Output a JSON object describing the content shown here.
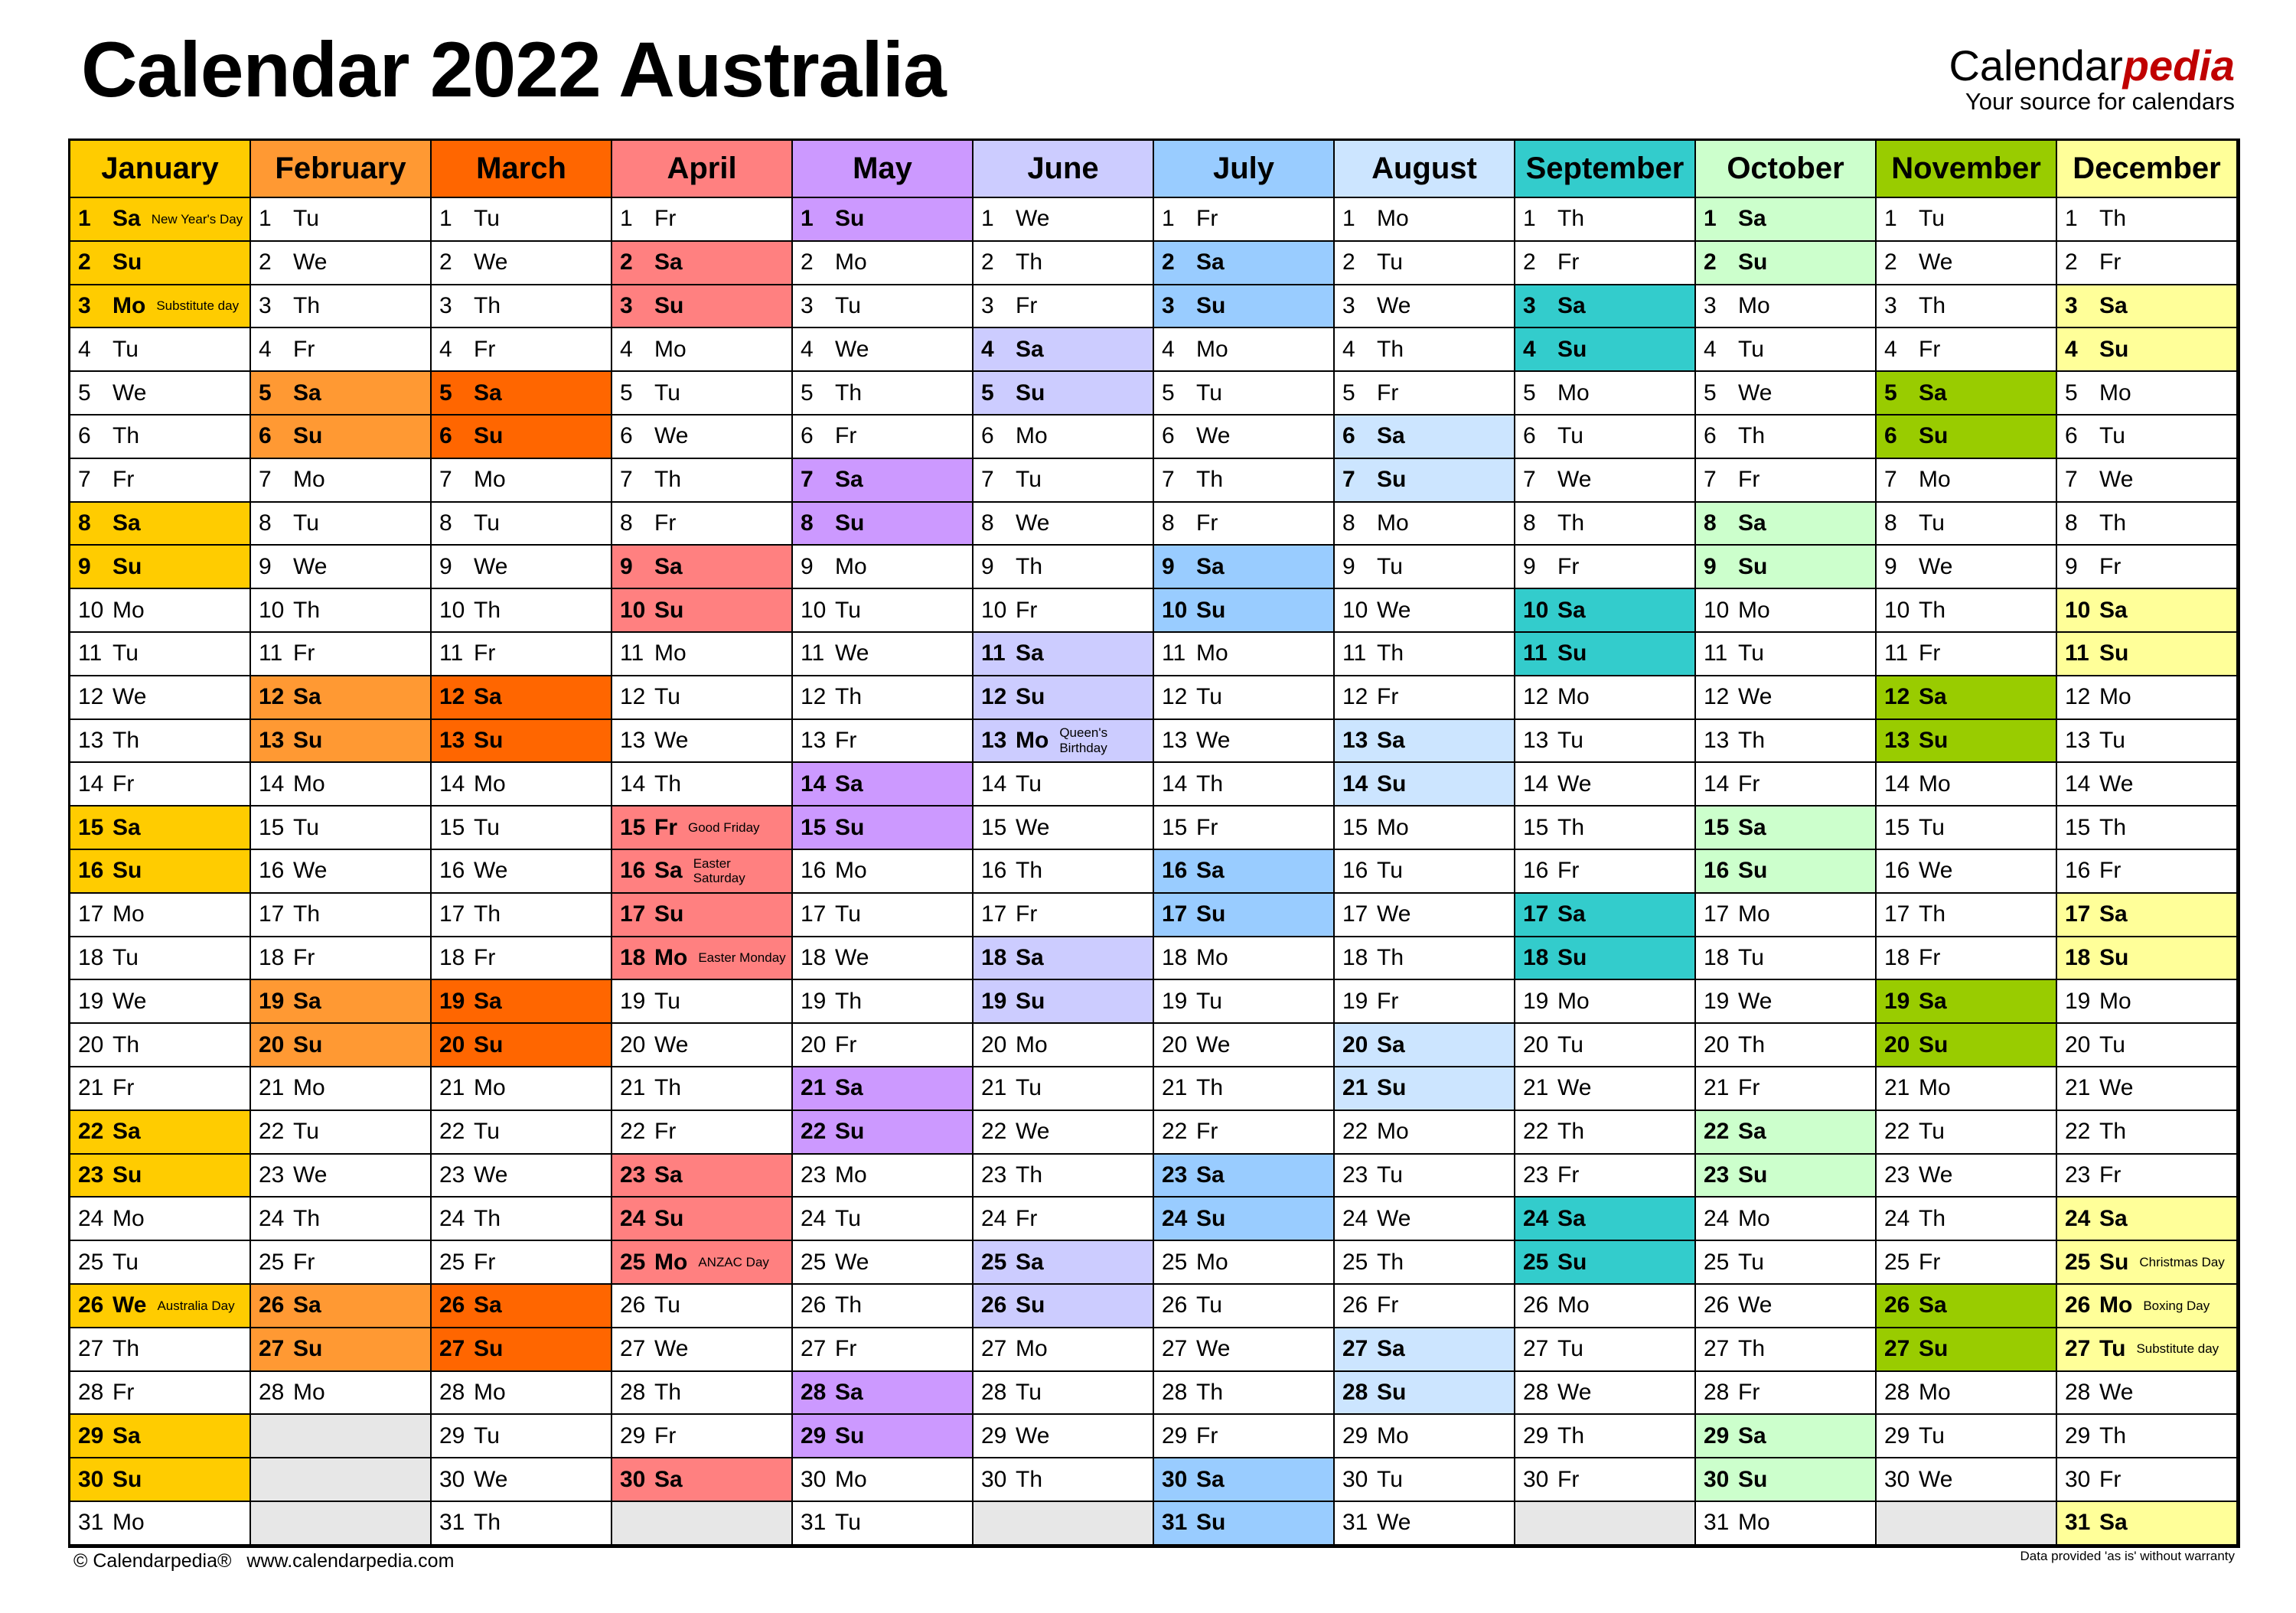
{
  "title": "Calendar 2022 Australia",
  "brand": {
    "part1": "Calendar",
    "part2": "pedia",
    "tagline": "Your source for calendars"
  },
  "footer": {
    "left": "© Calendarpedia®",
    "url": "www.calendarpedia.com",
    "right": "Data provided 'as is' without warranty"
  },
  "year": 2022,
  "weekday_abbr": [
    "Su",
    "Mo",
    "Tu",
    "We",
    "Th",
    "Fr",
    "Sa"
  ],
  "months": [
    {
      "name": "January",
      "color": "#ffcc00",
      "first_weekday": 6,
      "days": 31
    },
    {
      "name": "February",
      "color": "#ff9933",
      "first_weekday": 2,
      "days": 28
    },
    {
      "name": "March",
      "color": "#ff6600",
      "first_weekday": 2,
      "days": 31
    },
    {
      "name": "April",
      "color": "#ff8080",
      "first_weekday": 5,
      "days": 30
    },
    {
      "name": "May",
      "color": "#cc99ff",
      "first_weekday": 0,
      "days": 31
    },
    {
      "name": "June",
      "color": "#ccccff",
      "first_weekday": 3,
      "days": 30
    },
    {
      "name": "July",
      "color": "#99ccff",
      "first_weekday": 5,
      "days": 31
    },
    {
      "name": "August",
      "color": "#cce5ff",
      "first_weekday": 1,
      "days": 31
    },
    {
      "name": "September",
      "color": "#33cccc",
      "first_weekday": 4,
      "days": 30
    },
    {
      "name": "October",
      "color": "#ccffcc",
      "first_weekday": 6,
      "days": 31
    },
    {
      "name": "November",
      "color": "#99cc00",
      "first_weekday": 2,
      "days": 30
    },
    {
      "name": "December",
      "color": "#ffff99",
      "first_weekday": 4,
      "days": 31
    }
  ],
  "holidays": [
    {
      "month": 1,
      "day": 1,
      "name": "New Year's Day"
    },
    {
      "month": 1,
      "day": 3,
      "name": "Substitute day"
    },
    {
      "month": 1,
      "day": 26,
      "name": "Australia Day"
    },
    {
      "month": 4,
      "day": 15,
      "name": "Good Friday"
    },
    {
      "month": 4,
      "day": 16,
      "name": "Easter Saturday"
    },
    {
      "month": 4,
      "day": 18,
      "name": "Easter Monday"
    },
    {
      "month": 4,
      "day": 25,
      "name": "ANZAC Day"
    },
    {
      "month": 6,
      "day": 13,
      "name": "Queen's Birthday"
    },
    {
      "month": 12,
      "day": 25,
      "name": "Christmas Day"
    },
    {
      "month": 12,
      "day": 26,
      "name": "Boxing Day"
    },
    {
      "month": 12,
      "day": 27,
      "name": "Substitute day"
    }
  ]
}
